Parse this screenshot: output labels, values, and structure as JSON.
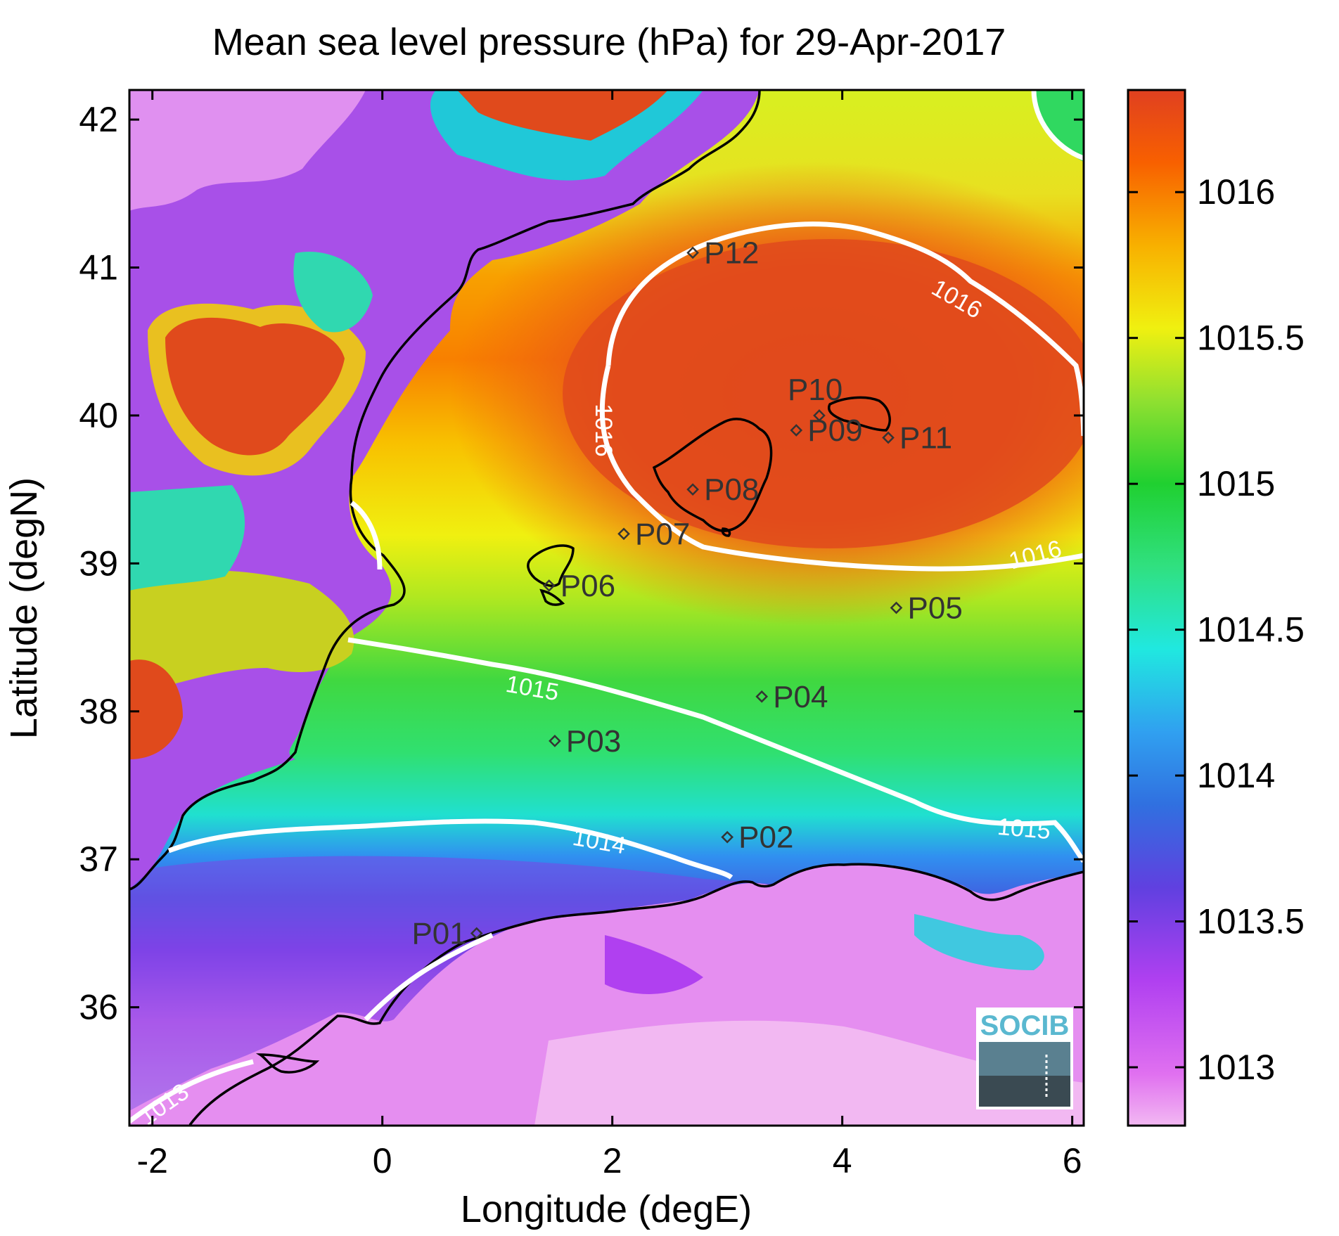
{
  "title": "Mean sea level pressure (hPa) for 29-Apr-2017",
  "x_axis": {
    "label": "Longitude (degE)",
    "range": [
      -2.2,
      6.1
    ],
    "ticks": [
      -2,
      0,
      2,
      4,
      6
    ],
    "tick_labels": [
      "-2",
      "0",
      "2",
      "4",
      "6"
    ]
  },
  "y_axis": {
    "label": "Latitude (degN)",
    "range": [
      35.2,
      42.2
    ],
    "ticks": [
      36,
      37,
      38,
      39,
      40,
      41,
      42
    ],
    "tick_labels": [
      "36",
      "37",
      "38",
      "39",
      "40",
      "41",
      "42"
    ]
  },
  "colorbar": {
    "range": [
      1012.8,
      1016.35
    ],
    "ticks": [
      1013,
      1013.5,
      1014,
      1014.5,
      1015,
      1015.5,
      1016
    ],
    "tick_labels": [
      "1013",
      "1013.5",
      "1014",
      "1014.5",
      "1015",
      "1015.5",
      "1016"
    ]
  },
  "contours": [
    {
      "level": 1013,
      "label": "1013"
    },
    {
      "level": 1014,
      "label": "1014"
    },
    {
      "level": 1015,
      "label": "1015"
    },
    {
      "level": 1016,
      "label": "1016"
    }
  ],
  "stations": [
    {
      "name": "P01",
      "lon": 0.82,
      "lat": 36.5
    },
    {
      "name": "P02",
      "lon": 3.0,
      "lat": 37.15
    },
    {
      "name": "P03",
      "lon": 1.5,
      "lat": 37.8
    },
    {
      "name": "P04",
      "lon": 3.3,
      "lat": 38.1
    },
    {
      "name": "P05",
      "lon": 4.47,
      "lat": 38.7
    },
    {
      "name": "P06",
      "lon": 1.45,
      "lat": 38.85
    },
    {
      "name": "P07",
      "lon": 2.1,
      "lat": 39.2
    },
    {
      "name": "P08",
      "lon": 2.7,
      "lat": 39.5
    },
    {
      "name": "P09",
      "lon": 3.6,
      "lat": 39.9
    },
    {
      "name": "P10",
      "lon": 3.8,
      "lat": 40.0
    },
    {
      "name": "P11",
      "lon": 4.4,
      "lat": 39.85
    },
    {
      "name": "P12",
      "lon": 2.7,
      "lat": 41.1
    }
  ],
  "logo_text": "SOCIB"
}
